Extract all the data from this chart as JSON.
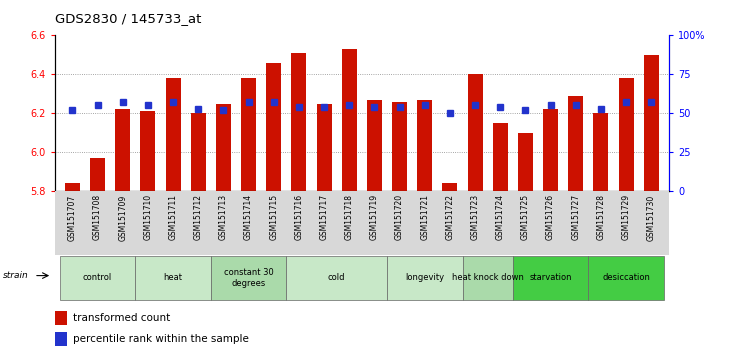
{
  "title": "GDS2830 / 145733_at",
  "samples": [
    "GSM151707",
    "GSM151708",
    "GSM151709",
    "GSM151710",
    "GSM151711",
    "GSM151712",
    "GSM151713",
    "GSM151714",
    "GSM151715",
    "GSM151716",
    "GSM151717",
    "GSM151718",
    "GSM151719",
    "GSM151720",
    "GSM151721",
    "GSM151722",
    "GSM151723",
    "GSM151724",
    "GSM151725",
    "GSM151726",
    "GSM151727",
    "GSM151728",
    "GSM151729",
    "GSM151730"
  ],
  "transformed_count": [
    5.84,
    5.97,
    6.22,
    6.21,
    6.38,
    6.2,
    6.25,
    6.38,
    6.46,
    6.51,
    6.25,
    6.53,
    6.27,
    6.26,
    6.27,
    5.84,
    6.4,
    6.15,
    6.1,
    6.22,
    6.29,
    6.2,
    6.38,
    6.5
  ],
  "percentile_rank": [
    52,
    55,
    57,
    55,
    57,
    53,
    52,
    57,
    57,
    54,
    54,
    55,
    54,
    54,
    55,
    50,
    55,
    54,
    52,
    55,
    55,
    53,
    57,
    57
  ],
  "groups": [
    {
      "label": "control",
      "start": 0,
      "end": 3,
      "color": "#c8e8c8"
    },
    {
      "label": "heat",
      "start": 3,
      "end": 6,
      "color": "#c8e8c8"
    },
    {
      "label": "constant 30\ndegrees",
      "start": 6,
      "end": 9,
      "color": "#aadaaa"
    },
    {
      "label": "cold",
      "start": 9,
      "end": 13,
      "color": "#c8e8c8"
    },
    {
      "label": "longevity",
      "start": 13,
      "end": 16,
      "color": "#c8e8c8"
    },
    {
      "label": "heat knock down",
      "start": 16,
      "end": 18,
      "color": "#aadaaa"
    },
    {
      "label": "starvation",
      "start": 18,
      "end": 21,
      "color": "#44cc44"
    },
    {
      "label": "desiccation",
      "start": 21,
      "end": 24,
      "color": "#44cc44"
    }
  ],
  "bar_color": "#cc1100",
  "dot_color": "#2233cc",
  "ylim_left": [
    5.8,
    6.6
  ],
  "yticks_left": [
    5.8,
    6.0,
    6.2,
    6.4,
    6.6
  ],
  "ylim_right": [
    0,
    100
  ],
  "yticks_right": [
    0,
    25,
    50,
    75,
    100
  ],
  "grid_color": "#888888",
  "bg_color": "#ffffff",
  "legend_tc": "transformed count",
  "legend_pr": "percentile rank within the sample"
}
